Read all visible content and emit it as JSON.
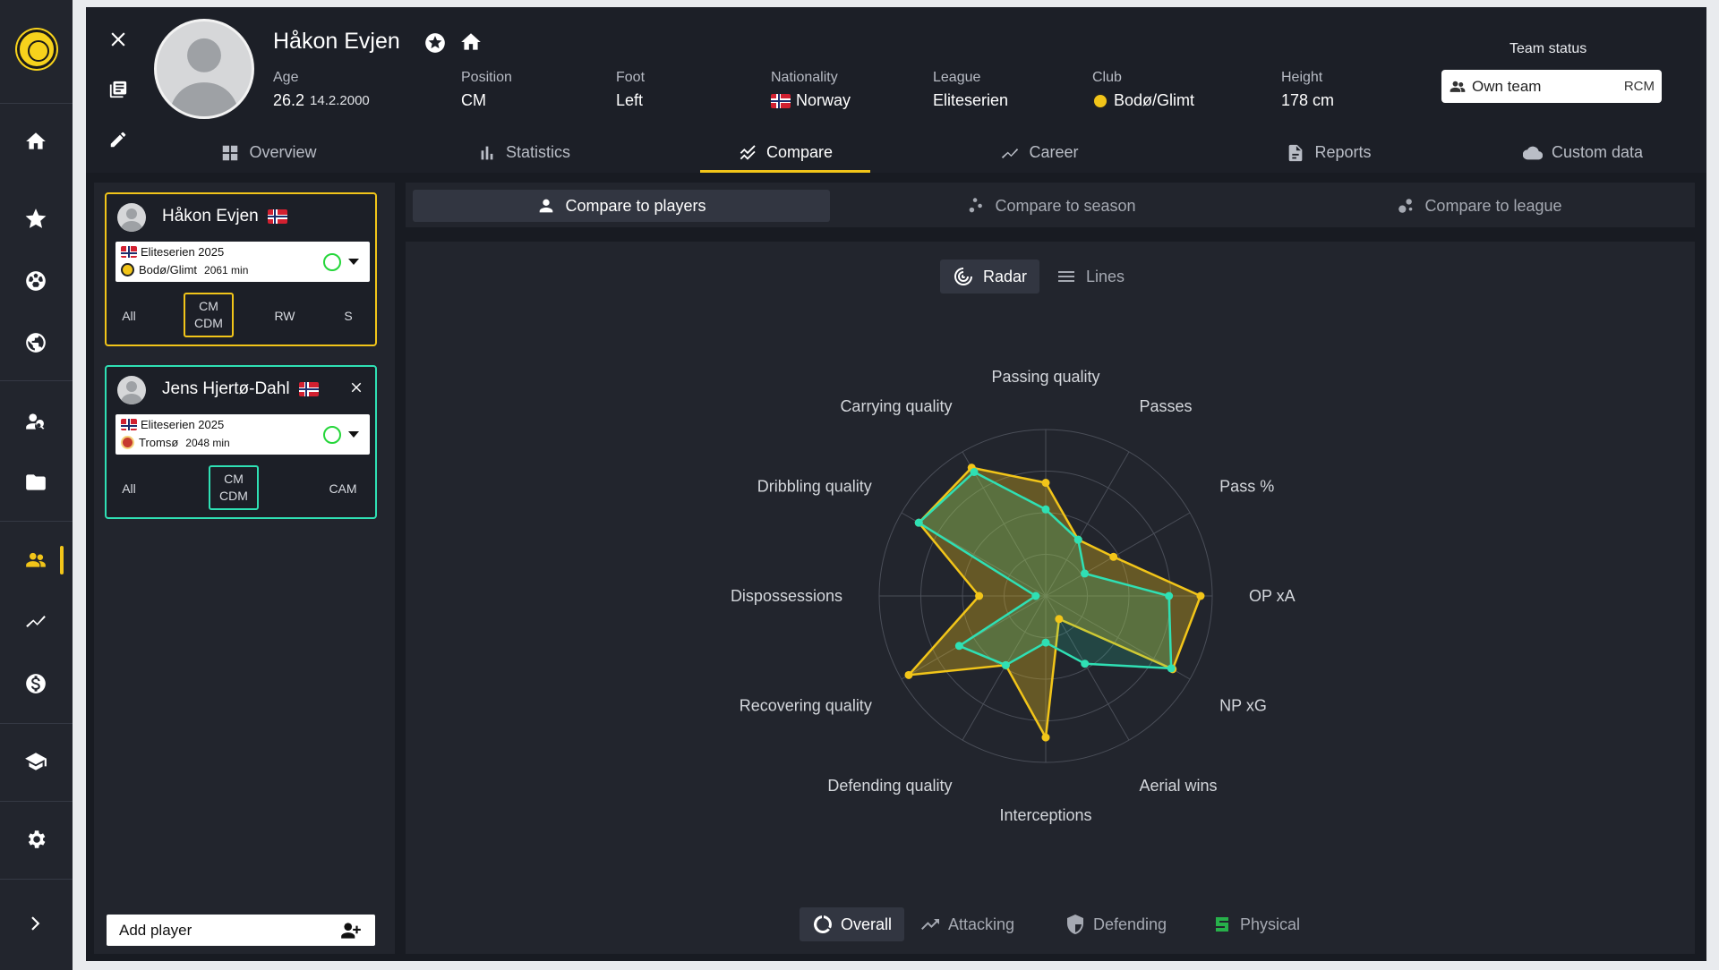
{
  "nav": {
    "items": [
      {
        "icon": "home-icon"
      },
      {
        "icon": "star-icon"
      },
      {
        "icon": "football-icon"
      },
      {
        "icon": "globe-icon"
      },
      {
        "icon": "person-search-icon"
      },
      {
        "icon": "folder-icon"
      },
      {
        "icon": "people-icon"
      },
      {
        "icon": "trend-icon"
      },
      {
        "icon": "dollar-icon"
      },
      {
        "icon": "school-icon"
      },
      {
        "icon": "gear-icon"
      },
      {
        "icon": "chevron-right-icon"
      }
    ],
    "active": "people-icon"
  },
  "player": {
    "name": "Håkon Evjen",
    "age_label": "Age",
    "age": "26.2",
    "birthdate": "14.2.2000",
    "position_label": "Position",
    "position": "CM",
    "foot_label": "Foot",
    "foot": "Left",
    "nationality_label": "Nationality",
    "nationality": "Norway",
    "league_label": "League",
    "league": "Eliteserien",
    "club_label": "Club",
    "club": "Bodø/Glimt",
    "height_label": "Height",
    "height": "178 cm"
  },
  "team_status": {
    "label": "Team status",
    "value": "Own team",
    "role": "RCM"
  },
  "tabs": [
    {
      "label": "Overview",
      "icon": "grid-icon"
    },
    {
      "label": "Statistics",
      "icon": "bar-chart-icon"
    },
    {
      "label": "Compare",
      "icon": "compare-icon",
      "active": true
    },
    {
      "label": "Career",
      "icon": "trend-icon"
    },
    {
      "label": "Reports",
      "icon": "report-icon"
    },
    {
      "label": "Custom data",
      "icon": "cloud-icon"
    }
  ],
  "compare_players": [
    {
      "name": "Håkon Evjen",
      "season": "Eliteserien 2025",
      "club": "Bodø/Glimt",
      "minutes": "2061 min",
      "positions": [
        "All",
        "CM\nCDM",
        "RW",
        "S"
      ],
      "selected_position": "CM\nCDM",
      "color": "#f2c519"
    },
    {
      "name": "Jens Hjertø-Dahl",
      "season": "Eliteserien 2025",
      "club": "Tromsø",
      "minutes": "2048 min",
      "positions": [
        "All",
        "CM\nCDM",
        "CAM"
      ],
      "selected_position": "CM\nCDM",
      "color": "#2fe0b4"
    }
  ],
  "add_player": "Add player",
  "compare_modes": [
    {
      "label": "Compare to players",
      "active": true
    },
    {
      "label": "Compare to season"
    },
    {
      "label": "Compare to league"
    }
  ],
  "views": [
    {
      "label": "Radar",
      "active": true
    },
    {
      "label": "Lines"
    }
  ],
  "categories": [
    {
      "label": "Overall",
      "active": true
    },
    {
      "label": "Attacking"
    },
    {
      "label": "Defending"
    },
    {
      "label": "Physical"
    }
  ],
  "chart_data": {
    "type": "radar",
    "axes": [
      "Passing quality",
      "Passes",
      "Pass %",
      "OP xA",
      "NP xG",
      "Aerial wins",
      "Interceptions",
      "Defending quality",
      "Recovering quality",
      "Dispossessions",
      "Dribbling quality",
      "Carrying quality"
    ],
    "rlim": [
      0,
      1
    ],
    "grid_rings": 4,
    "series": [
      {
        "name": "Håkon Evjen",
        "color": "#f2c519",
        "values": [
          0.68,
          0.39,
          0.47,
          0.93,
          0.88,
          0.16,
          0.85,
          0.48,
          0.95,
          0.4,
          0.88,
          0.89
        ]
      },
      {
        "name": "Jens Hjertø-Dahl",
        "color": "#2fe0b4",
        "values": [
          0.52,
          0.39,
          0.27,
          0.74,
          0.87,
          0.47,
          0.28,
          0.48,
          0.6,
          0.06,
          0.88,
          0.86
        ]
      }
    ]
  }
}
